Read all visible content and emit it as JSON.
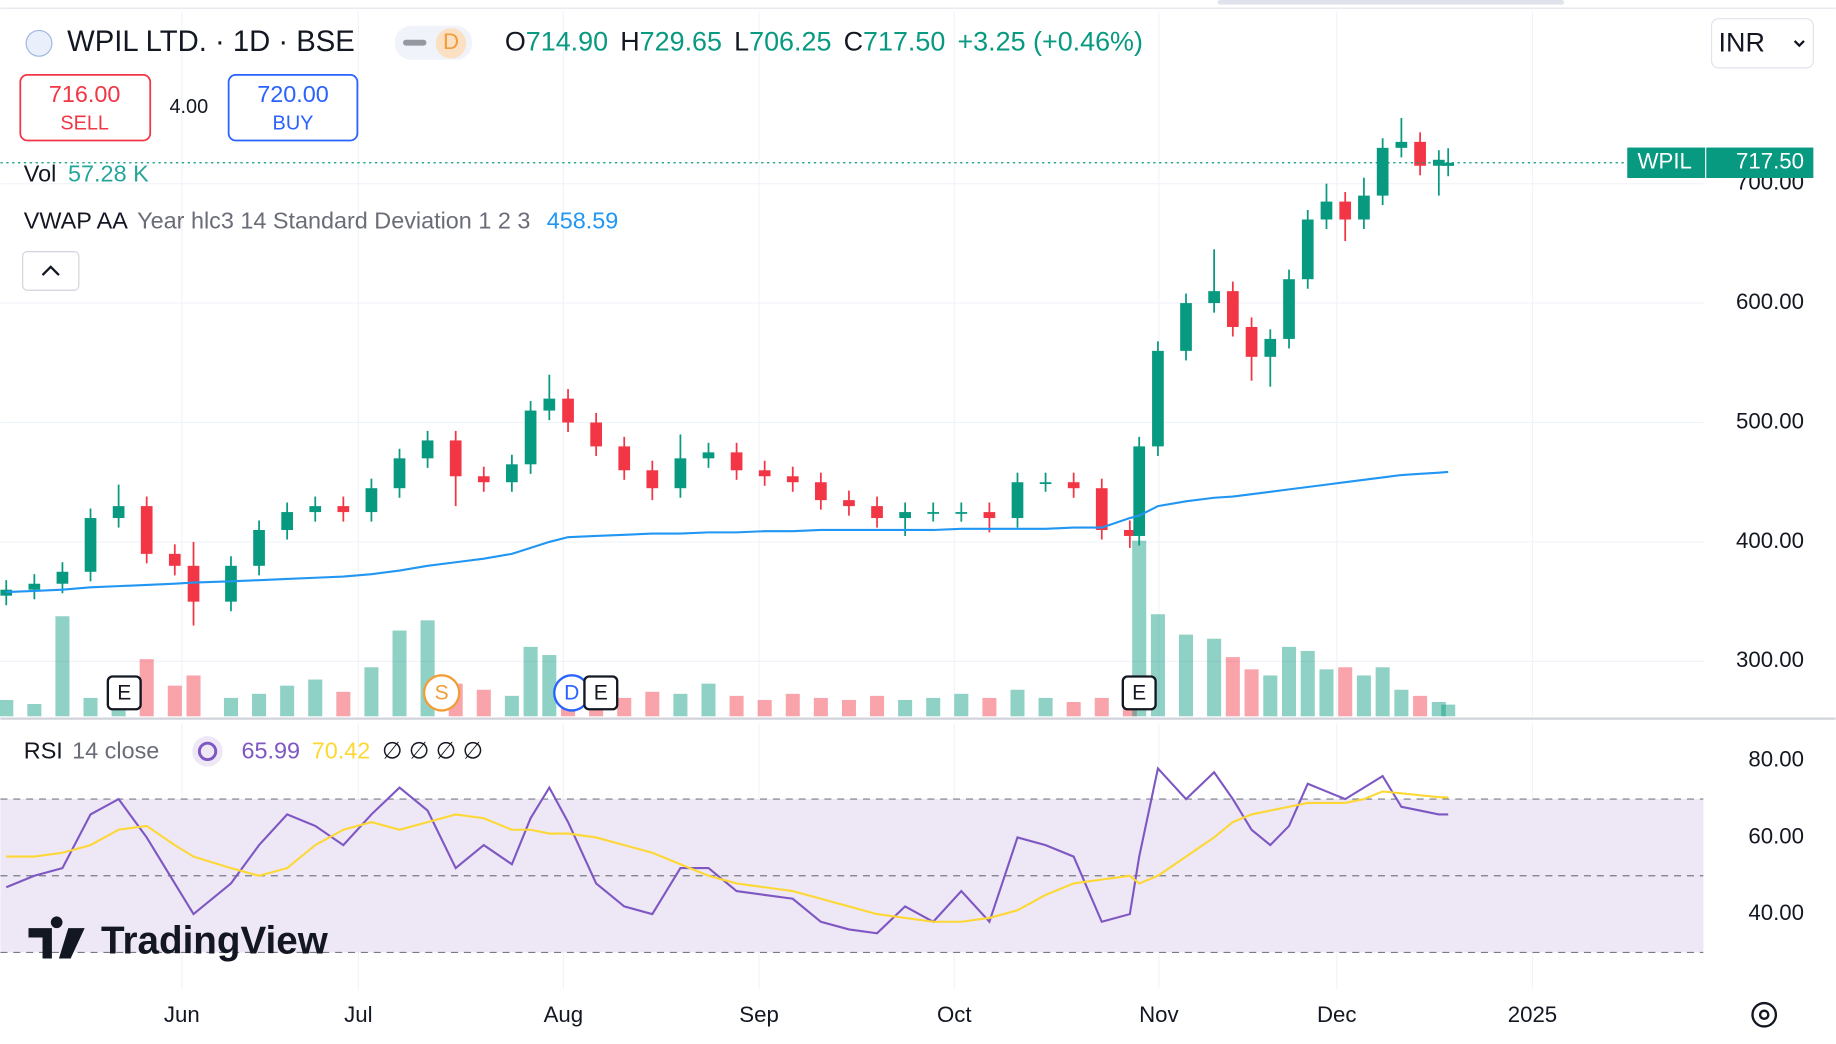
{
  "header": {
    "symbol": "WPIL LTD. · 1D · BSE",
    "badge": "D",
    "ohlc": [
      {
        "k": "O",
        "v": "714.90"
      },
      {
        "k": "H",
        "v": "729.65"
      },
      {
        "k": "L",
        "v": "706.25"
      },
      {
        "k": "C",
        "v": "717.50"
      }
    ],
    "change": "+3.25 (+0.46%)",
    "currency": "INR"
  },
  "trade": {
    "sell_price": "716.00",
    "sell": "SELL",
    "spread": "4.00",
    "buy_price": "720.00",
    "buy": "BUY"
  },
  "branding": "TradingView",
  "chart_data": [
    {
      "type": "candlestick",
      "up_color": "#089981",
      "down_color": "#f23645",
      "x": [
        0,
        3,
        6,
        9,
        12,
        15,
        18,
        20,
        24,
        27,
        30,
        33,
        36,
        39,
        42,
        45,
        48,
        51,
        54,
        56,
        58,
        60,
        63,
        66,
        69,
        72,
        75,
        78,
        81,
        84,
        87,
        90,
        93,
        96,
        99,
        102,
        105,
        108,
        111,
        114,
        117,
        120,
        121,
        123,
        126,
        129,
        131,
        133,
        135,
        137,
        139,
        141,
        143,
        145,
        147,
        149,
        151,
        153,
        154
      ],
      "open": [
        355,
        360,
        365,
        375,
        420,
        430,
        390,
        380,
        350,
        380,
        410,
        425,
        430,
        425,
        445,
        470,
        485,
        455,
        450,
        465,
        510,
        520,
        500,
        480,
        460,
        445,
        470,
        475,
        460,
        455,
        450,
        435,
        430,
        420,
        425,
        425,
        425,
        420,
        450,
        450,
        445,
        410,
        405,
        480,
        560,
        600,
        610,
        580,
        555,
        570,
        620,
        670,
        685,
        670,
        690,
        730,
        735,
        715,
        714.9
      ],
      "high": [
        368,
        373,
        383,
        428,
        448,
        438,
        398,
        400,
        388,
        418,
        433,
        438,
        438,
        453,
        478,
        493,
        493,
        463,
        473,
        518,
        540,
        528,
        508,
        488,
        468,
        490,
        483,
        483,
        468,
        463,
        458,
        443,
        438,
        433,
        433,
        433,
        433,
        458,
        458,
        458,
        453,
        418,
        488,
        568,
        608,
        645,
        618,
        588,
        578,
        628,
        678,
        700,
        693,
        705,
        738,
        755,
        743,
        728,
        729.65
      ],
      "low": [
        347,
        352,
        357,
        367,
        412,
        382,
        372,
        330,
        342,
        372,
        402,
        417,
        417,
        417,
        437,
        462,
        430,
        442,
        442,
        457,
        502,
        492,
        472,
        452,
        435,
        437,
        462,
        452,
        447,
        442,
        427,
        422,
        412,
        405,
        417,
        417,
        408,
        412,
        442,
        437,
        402,
        395,
        397,
        472,
        552,
        592,
        572,
        535,
        530,
        562,
        612,
        662,
        652,
        662,
        682,
        722,
        707,
        690,
        706.25
      ],
      "close": [
        360,
        365,
        375,
        420,
        430,
        390,
        380,
        350,
        380,
        410,
        425,
        430,
        425,
        445,
        470,
        485,
        455,
        450,
        465,
        510,
        520,
        500,
        480,
        460,
        445,
        470,
        475,
        460,
        455,
        450,
        435,
        430,
        420,
        425,
        425,
        425,
        420,
        450,
        450,
        445,
        410,
        405,
        480,
        560,
        600,
        610,
        580,
        555,
        570,
        620,
        670,
        685,
        670,
        690,
        730,
        735,
        715,
        720,
        717.5
      ],
      "volume": {
        "name": "Vol",
        "last_label": "57.28 K",
        "values": [
          80,
          60,
          490,
          90,
          120,
          280,
          150,
          200,
          90,
          110,
          150,
          180,
          120,
          240,
          420,
          470,
          160,
          130,
          100,
          340,
          300,
          120,
          130,
          90,
          120,
          110,
          160,
          100,
          80,
          110,
          90,
          80,
          100,
          80,
          90,
          110,
          90,
          130,
          90,
          70,
          90,
          60,
          860,
          500,
          400,
          380,
          290,
          230,
          200,
          340,
          320,
          230,
          240,
          200,
          240,
          130,
          100,
          70,
          57.28
        ]
      },
      "vwap": {
        "name": "VWAP AA",
        "params": "Year hlc3 14 Standard Deviation 1 2 3",
        "value_label": "458.59",
        "color": "#2196f3",
        "values": [
          358,
          359,
          360,
          362,
          363,
          364,
          365,
          366,
          367,
          368,
          369,
          370,
          371,
          373,
          376,
          380,
          383,
          386,
          390,
          395,
          400,
          404,
          405,
          406,
          407,
          407,
          408,
          408,
          409,
          409,
          410,
          410,
          410,
          410,
          410,
          411,
          411,
          411,
          411,
          412,
          412,
          420,
          422,
          430,
          434,
          437,
          438,
          440,
          442,
          444,
          446,
          448,
          450,
          452,
          454,
          456,
          457,
          458,
          458.59
        ]
      },
      "xlim": [
        -0.625,
        181.25
      ],
      "xticks": [
        {
          "value": 18.75,
          "label": "Jun"
        },
        {
          "value": 37.6,
          "label": "Jul"
        },
        {
          "value": 59.5,
          "label": "Aug"
        },
        {
          "value": 80.4,
          "label": "Sep"
        },
        {
          "value": 101.25,
          "label": "Oct"
        },
        {
          "value": 123.1,
          "label": "Nov"
        },
        {
          "value": 142.1,
          "label": "Dec"
        },
        {
          "value": 163,
          "label": "2025"
        }
      ],
      "ylim": [
        254,
        844
      ],
      "yticks": [
        {
          "value": 300,
          "label": "300.00"
        },
        {
          "value": 400,
          "label": "400.00"
        },
        {
          "value": 500,
          "label": "500.00"
        },
        {
          "value": 600,
          "label": "600.00"
        },
        {
          "value": 700,
          "label": "700.00"
        }
      ],
      "grid": true,
      "last_price": {
        "symbol": "WPIL",
        "value": 717.5,
        "label": "717.50"
      },
      "events": [
        {
          "x": 12.6,
          "label": "E",
          "shape": "square",
          "color": "#131722"
        },
        {
          "x": 46.5,
          "label": "S",
          "shape": "circle",
          "color": "#f29d38"
        },
        {
          "x": 60.4,
          "label": "D",
          "shape": "circle",
          "color": "#2962ff"
        },
        {
          "x": 63.5,
          "label": "E",
          "shape": "square",
          "color": "#131722"
        },
        {
          "x": 121,
          "label": "E",
          "shape": "square",
          "color": "#131722"
        }
      ]
    },
    {
      "type": "line",
      "name": "RSI",
      "params": "14 close",
      "extra": "∅ ∅ ∅ ∅",
      "series": [
        {
          "color": "#7e57c2",
          "value_label": "65.99",
          "values": [
            47,
            50,
            52,
            66,
            70,
            60,
            48,
            40,
            48,
            58,
            66,
            63,
            58,
            66,
            73,
            67,
            52,
            58,
            53,
            65,
            73,
            64,
            48,
            42,
            40,
            52,
            52,
            46,
            45,
            44,
            38,
            36,
            35,
            42,
            38,
            46,
            38,
            60,
            58,
            55,
            38,
            40,
            55,
            78,
            70,
            77,
            70,
            62,
            58,
            63,
            74,
            72,
            70,
            73,
            76,
            68,
            67,
            66,
            65.99
          ]
        },
        {
          "color": "#fdd835",
          "value_label": "70.42",
          "values": [
            55,
            55,
            56,
            58,
            62,
            63,
            58,
            55,
            52,
            50,
            52,
            58,
            62,
            64,
            62,
            64,
            66,
            65,
            62,
            62,
            61,
            61,
            60,
            58,
            56,
            53,
            50,
            48,
            47,
            46,
            44,
            42,
            40,
            39,
            38,
            38,
            39,
            41,
            45,
            48,
            49,
            50,
            48,
            50,
            55,
            60,
            64,
            66,
            67,
            68,
            69,
            69,
            69,
            70,
            72,
            71.5,
            71,
            70.5,
            70.42
          ]
        }
      ],
      "ylim": [
        20.46,
        89.77
      ],
      "yticks": [
        {
          "value": 40,
          "label": "40.00"
        },
        {
          "value": 60,
          "label": "60.00"
        },
        {
          "value": 80,
          "label": "80.00"
        }
      ],
      "bands": [
        70,
        50,
        30
      ],
      "band_fill": "#ede7f6"
    }
  ]
}
